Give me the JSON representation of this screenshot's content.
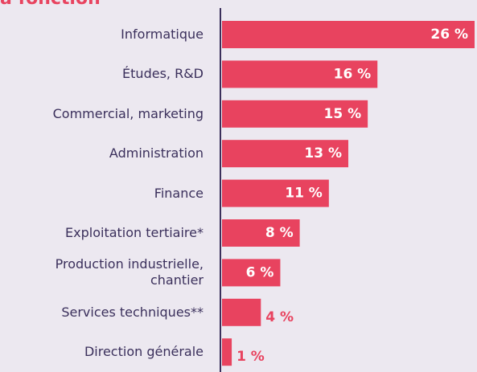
{
  "chart_data": {
    "type": "bar",
    "orientation": "horizontal",
    "title": "a fonction",
    "categories": [
      "Informatique",
      "Études, R&D",
      "Commercial, marketing",
      "Administration",
      "Finance",
      "Exploitation tertiaire*",
      "Production industrielle,\nchantier",
      "Services techniques**",
      "Direction générale"
    ],
    "values": [
      26,
      16,
      15,
      13,
      11,
      8,
      6,
      4,
      1
    ],
    "value_labels": [
      "26 %",
      "16 %",
      "15 %",
      "13 %",
      "11 %",
      "8 %",
      "6 %",
      "4 %",
      "1 %"
    ],
    "color": "#e8435f"
  }
}
